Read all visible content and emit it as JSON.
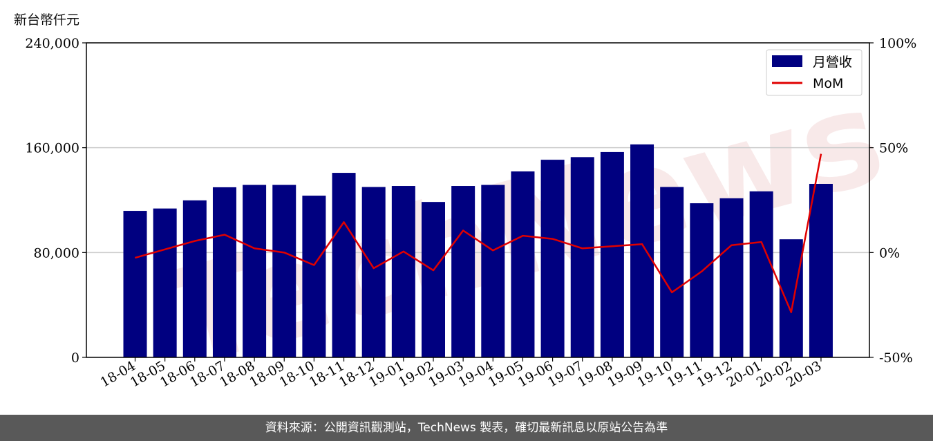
{
  "unit_label": "新台幣仟元",
  "watermark": "TechNews",
  "footer": "資料來源：公開資訊觀測站，TechNews 製表，確切最新訊息以原站公告為準",
  "colors": {
    "bar": "#000080",
    "line": "#e00000",
    "grid": "#cccccc"
  },
  "chart_data": {
    "type": "bar",
    "title": "",
    "xlabel": "",
    "ylabel": "新台幣仟元",
    "categories": [
      "18-04",
      "18-05",
      "18-06",
      "18-07",
      "18-08",
      "18-09",
      "18-10",
      "18-11",
      "18-12",
      "19-01",
      "19-02",
      "19-03",
      "19-04",
      "19-05",
      "19-06",
      "19-07",
      "19-08",
      "19-09",
      "19-10",
      "19-11",
      "19-12",
      "20-01",
      "20-02",
      "20-03"
    ],
    "ylim": [
      0,
      240000
    ],
    "yticks": [
      0,
      80000,
      160000,
      240000
    ],
    "ytick_labels": [
      "0",
      "80,000",
      "160,000",
      "240,000"
    ],
    "y2lim": [
      -50,
      100
    ],
    "y2ticks": [
      -50,
      0,
      50,
      100
    ],
    "y2tick_labels": [
      "-50%",
      "0%",
      "50%",
      "100%"
    ],
    "grid": "horizontal",
    "legend_position": "top-right",
    "series": [
      {
        "name": "月營收",
        "type": "bar",
        "axis": "left",
        "values": [
          111800,
          113600,
          119800,
          129800,
          131600,
          131600,
          123400,
          140800,
          130000,
          130800,
          118600,
          130800,
          131600,
          141900,
          150800,
          152800,
          156700,
          162500,
          130000,
          117600,
          121400,
          126700,
          90100,
          132400
        ]
      },
      {
        "name": "MoM",
        "type": "line",
        "axis": "right",
        "values": [
          -2.5,
          1.5,
          5.5,
          8.5,
          2,
          0,
          -6,
          14.5,
          -7.5,
          0.5,
          -8.5,
          10.5,
          1,
          8,
          6.5,
          2,
          3,
          4,
          -19,
          -9,
          3.5,
          5,
          -28.5,
          47
        ]
      }
    ]
  }
}
